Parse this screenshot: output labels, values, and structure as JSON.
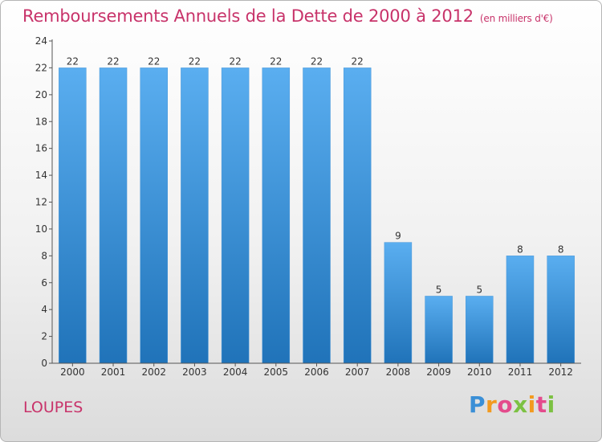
{
  "header": {
    "title": "Remboursements Annuels de la Dette de 2000 à 2012",
    "unit": "(en milliers d'€)"
  },
  "footer": {
    "city": "LOUPES",
    "logo_letters": [
      "P",
      "r",
      "o",
      "x",
      "i",
      "t",
      "i"
    ]
  },
  "colors": {
    "accent_text": "#c8336a",
    "bar_light": "#5aaef0",
    "bar_dark": "#2073b9"
  },
  "chart_data": {
    "type": "bar",
    "categories": [
      "2000",
      "2001",
      "2002",
      "2003",
      "2004",
      "2005",
      "2006",
      "2007",
      "2008",
      "2009",
      "2010",
      "2011",
      "2012"
    ],
    "values": [
      22,
      22,
      22,
      22,
      22,
      22,
      22,
      22,
      9,
      5,
      5,
      8,
      8
    ],
    "data_labels": [
      "22",
      "22",
      "22",
      "22",
      "22",
      "22",
      "22",
      "22",
      "9",
      "5",
      "5",
      "8",
      "8"
    ],
    "title": "Remboursements Annuels de la Dette de 2000 à 2012",
    "xlabel": "",
    "ylabel": "",
    "ylim": [
      0,
      24
    ],
    "yticks": [
      0,
      2,
      4,
      6,
      8,
      10,
      12,
      14,
      16,
      18,
      20,
      22,
      24
    ],
    "ytick_labels": [
      "0",
      "2",
      "4",
      "6",
      "8",
      "10",
      "12",
      "14",
      "16",
      "18",
      "20",
      "22",
      "24"
    ],
    "grid": false,
    "legend": "none"
  }
}
